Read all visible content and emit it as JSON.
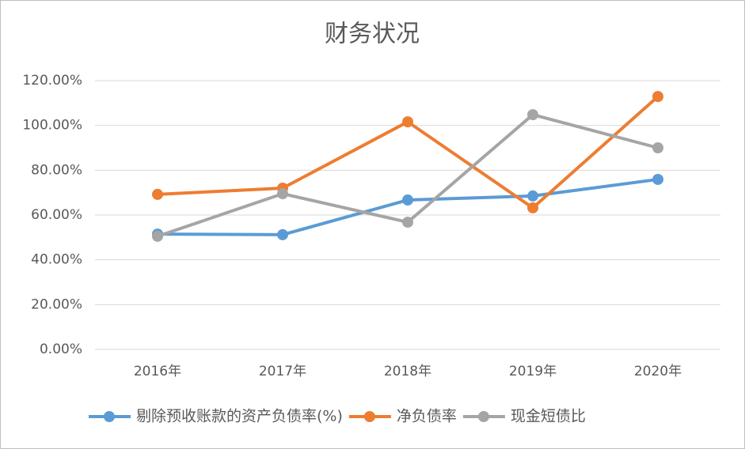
{
  "chart_data": {
    "type": "line",
    "title": "财务状况",
    "categories": [
      "2016年",
      "2017年",
      "2018年",
      "2019年",
      "2020年"
    ],
    "series": [
      {
        "name": "剔除预收账款的资产负债率(%)",
        "color": "#5b9bd5",
        "values": [
          51.5,
          51.2,
          66.7,
          68.5,
          75.9
        ]
      },
      {
        "name": "净负债率",
        "color": "#ed7d31",
        "values": [
          69.2,
          72.0,
          101.6,
          63.2,
          112.9
        ]
      },
      {
        "name": "现金短债比",
        "color": "#a5a5a5",
        "values": [
          50.5,
          69.5,
          56.8,
          104.8,
          90.0
        ]
      }
    ],
    "ylim": [
      0,
      120
    ],
    "yticks": [
      {
        "value": 0,
        "label": "0.00%"
      },
      {
        "value": 20,
        "label": "20.00%"
      },
      {
        "value": 40,
        "label": "40.00%"
      },
      {
        "value": 60,
        "label": "60.00%"
      },
      {
        "value": 80,
        "label": "80.00%"
      },
      {
        "value": 100,
        "label": "100.00%"
      },
      {
        "value": 120,
        "label": "120.00%"
      }
    ],
    "grid": true,
    "legend": "bottom"
  }
}
